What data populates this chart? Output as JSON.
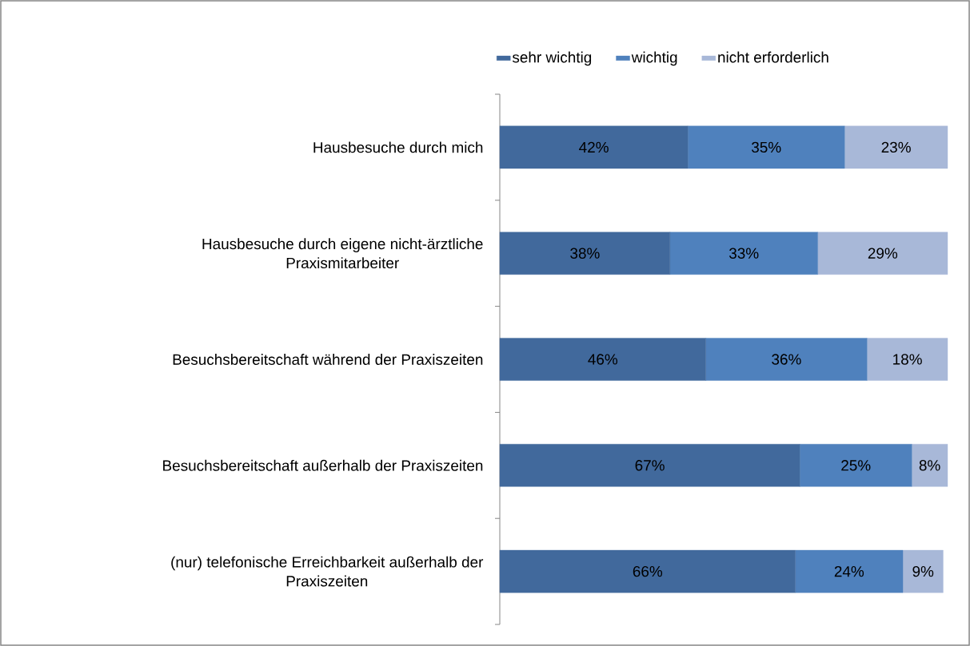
{
  "chart_data": {
    "type": "bar",
    "orientation": "horizontal",
    "stacked": true,
    "legend": "top",
    "categories": [
      "Hausbesuche durch mich",
      "Hausbesuche durch eigene nicht-ärztliche Praxismitarbeiter",
      "Besuchsbereitschaft während der Praxiszeiten",
      "Besuchsbereitschaft außerhalb der Praxiszeiten",
      "(nur) telefonische Erreichbarkeit außerhalb der Praxiszeiten"
    ],
    "series": [
      {
        "name": "sehr wichtig",
        "color": "#41699c",
        "values": [
          42,
          38,
          46,
          67,
          66
        ],
        "value_labels": [
          "42%",
          "38%",
          "46%",
          "67%",
          "66%"
        ]
      },
      {
        "name": "wichtig",
        "color": "#4f81bd",
        "values": [
          35,
          33,
          36,
          25,
          24
        ],
        "value_labels": [
          "35%",
          "33%",
          "36%",
          "25%",
          "24%"
        ]
      },
      {
        "name": "nicht erforderlich",
        "color": "#a8b8d8",
        "values": [
          23,
          29,
          18,
          8,
          9
        ],
        "value_labels": [
          "23%",
          "29%",
          "18%",
          "8%",
          "9%"
        ]
      }
    ]
  }
}
